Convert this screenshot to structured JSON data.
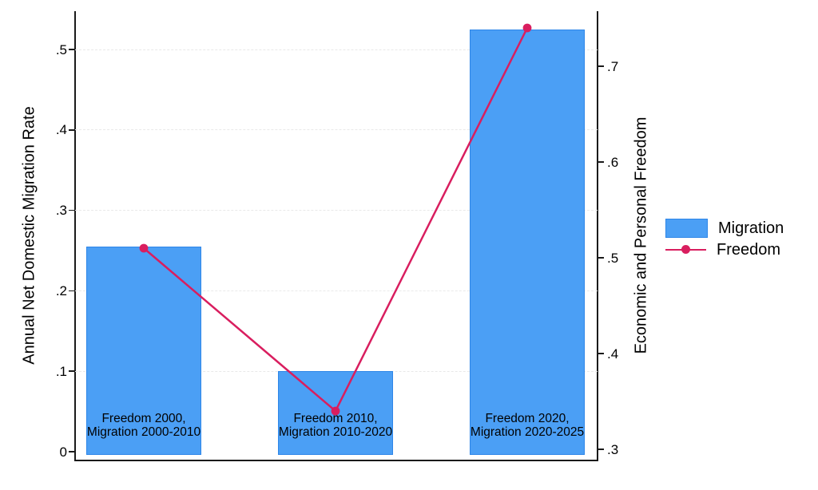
{
  "chart_data": {
    "type": "bar",
    "subtype": "dual-axis bar + line",
    "categories": [
      [
        "Freedom 2000,",
        "Migration 2000-2010"
      ],
      [
        "Freedom 2010,",
        "Migration 2010-2020"
      ],
      [
        "Freedom 2020,",
        "Migration 2020-2025"
      ]
    ],
    "series": [
      {
        "name": "Migration",
        "type": "bar",
        "axis": "left",
        "values": [
          0.255,
          0.1,
          0.525
        ]
      },
      {
        "name": "Freedom",
        "type": "line",
        "axis": "right",
        "values": [
          0.51,
          0.34,
          0.74
        ]
      }
    ],
    "left_axis": {
      "title": "Annual Net Domestic Migration Rate",
      "ticks": [
        "0",
        ".1",
        ".2",
        ".3",
        ".4",
        ".5"
      ],
      "range": [
        0,
        0.56
      ]
    },
    "right_axis": {
      "title": "Economic and Personal Freedom",
      "ticks": [
        ".3",
        ".4",
        ".5",
        ".6",
        ".7"
      ],
      "range": [
        0.29,
        0.77
      ]
    },
    "legend": {
      "position": "right-outside",
      "items": [
        {
          "label": "Migration",
          "swatch": "bar"
        },
        {
          "label": "Freedom",
          "swatch": "line"
        }
      ]
    },
    "colors": {
      "bar_fill": "#4B9FF5",
      "bar_border": "#2E86E8",
      "line": "#D91E5F",
      "grid": "#E9E9E9",
      "axis": "#1A1A1A",
      "text": "#000000"
    },
    "grid": "horizontal dashed lines at left-axis ticks"
  }
}
